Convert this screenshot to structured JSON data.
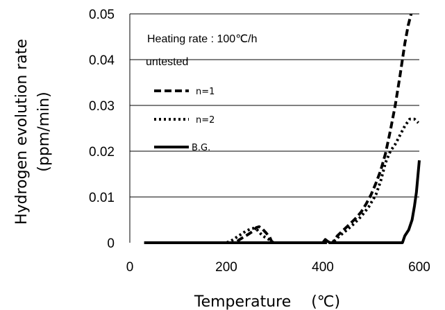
{
  "chart_data": {
    "type": "line",
    "xlabel": "Temperature　 (℃)",
    "ylabel_line1": "Hydrogen evolution rate",
    "ylabel_line2": "(ppm/min)",
    "annotation_line1": "Heating rate : 100℃/h",
    "annotation_line2": "untested",
    "xlim": [
      0,
      600
    ],
    "ylim": [
      0,
      0.05
    ],
    "x_ticks": [
      0,
      200,
      400,
      600
    ],
    "x_tick_labels": [
      "0",
      "200",
      "400",
      "600"
    ],
    "y_ticks": [
      0,
      0.01,
      0.02,
      0.03,
      0.04,
      0.05
    ],
    "y_tick_labels": [
      "0",
      "0.01",
      "0.02",
      "0.03",
      "0.04",
      "0.05"
    ],
    "grid": "horizontal",
    "legend_position": "upper-left",
    "series": [
      {
        "name": "n=1",
        "style": "dashed",
        "x": [
          30,
          220,
          225,
          235,
          245,
          255,
          262,
          268,
          275,
          282,
          290,
          295,
          420,
          430,
          440,
          450,
          460,
          470,
          480,
          490,
          500,
          510,
          520,
          530,
          540,
          550,
          560,
          570,
          577,
          583
        ],
        "y": [
          0,
          0,
          0.0005,
          0.0012,
          0.0018,
          0.0025,
          0.0033,
          0.0035,
          0.003,
          0.0022,
          0.0012,
          0,
          0,
          0.0015,
          0.0025,
          0.0035,
          0.0045,
          0.0055,
          0.0068,
          0.0085,
          0.0105,
          0.013,
          0.0158,
          0.0195,
          0.0245,
          0.03,
          0.0365,
          0.0435,
          0.0475,
          0.05
        ]
      },
      {
        "name": "n=2",
        "style": "dotted",
        "x": [
          30,
          200,
          210,
          220,
          230,
          240,
          250,
          258,
          265,
          272,
          280,
          290,
          298,
          420,
          435,
          450,
          465,
          480,
          495,
          510,
          520,
          530,
          540,
          550,
          560,
          570,
          580,
          590,
          598
        ],
        "y": [
          0,
          0,
          0.0004,
          0.0011,
          0.0018,
          0.0025,
          0.003,
          0.0032,
          0.0027,
          0.0019,
          0.0012,
          0.0006,
          0,
          0,
          0.0015,
          0.0028,
          0.0042,
          0.0058,
          0.0078,
          0.0105,
          0.0135,
          0.0175,
          0.02,
          0.0215,
          0.0235,
          0.0255,
          0.027,
          0.027,
          0.0262
        ]
      },
      {
        "name": "B.G.",
        "style": "solid",
        "x": [
          30,
          400,
          405,
          410,
          415,
          420,
          565,
          570,
          578,
          585,
          590,
          594,
          597,
          600
        ],
        "y": [
          0,
          0,
          0.0007,
          0.0003,
          0,
          0,
          0,
          0.0015,
          0.0028,
          0.005,
          0.008,
          0.011,
          0.0145,
          0.018
        ]
      }
    ]
  }
}
